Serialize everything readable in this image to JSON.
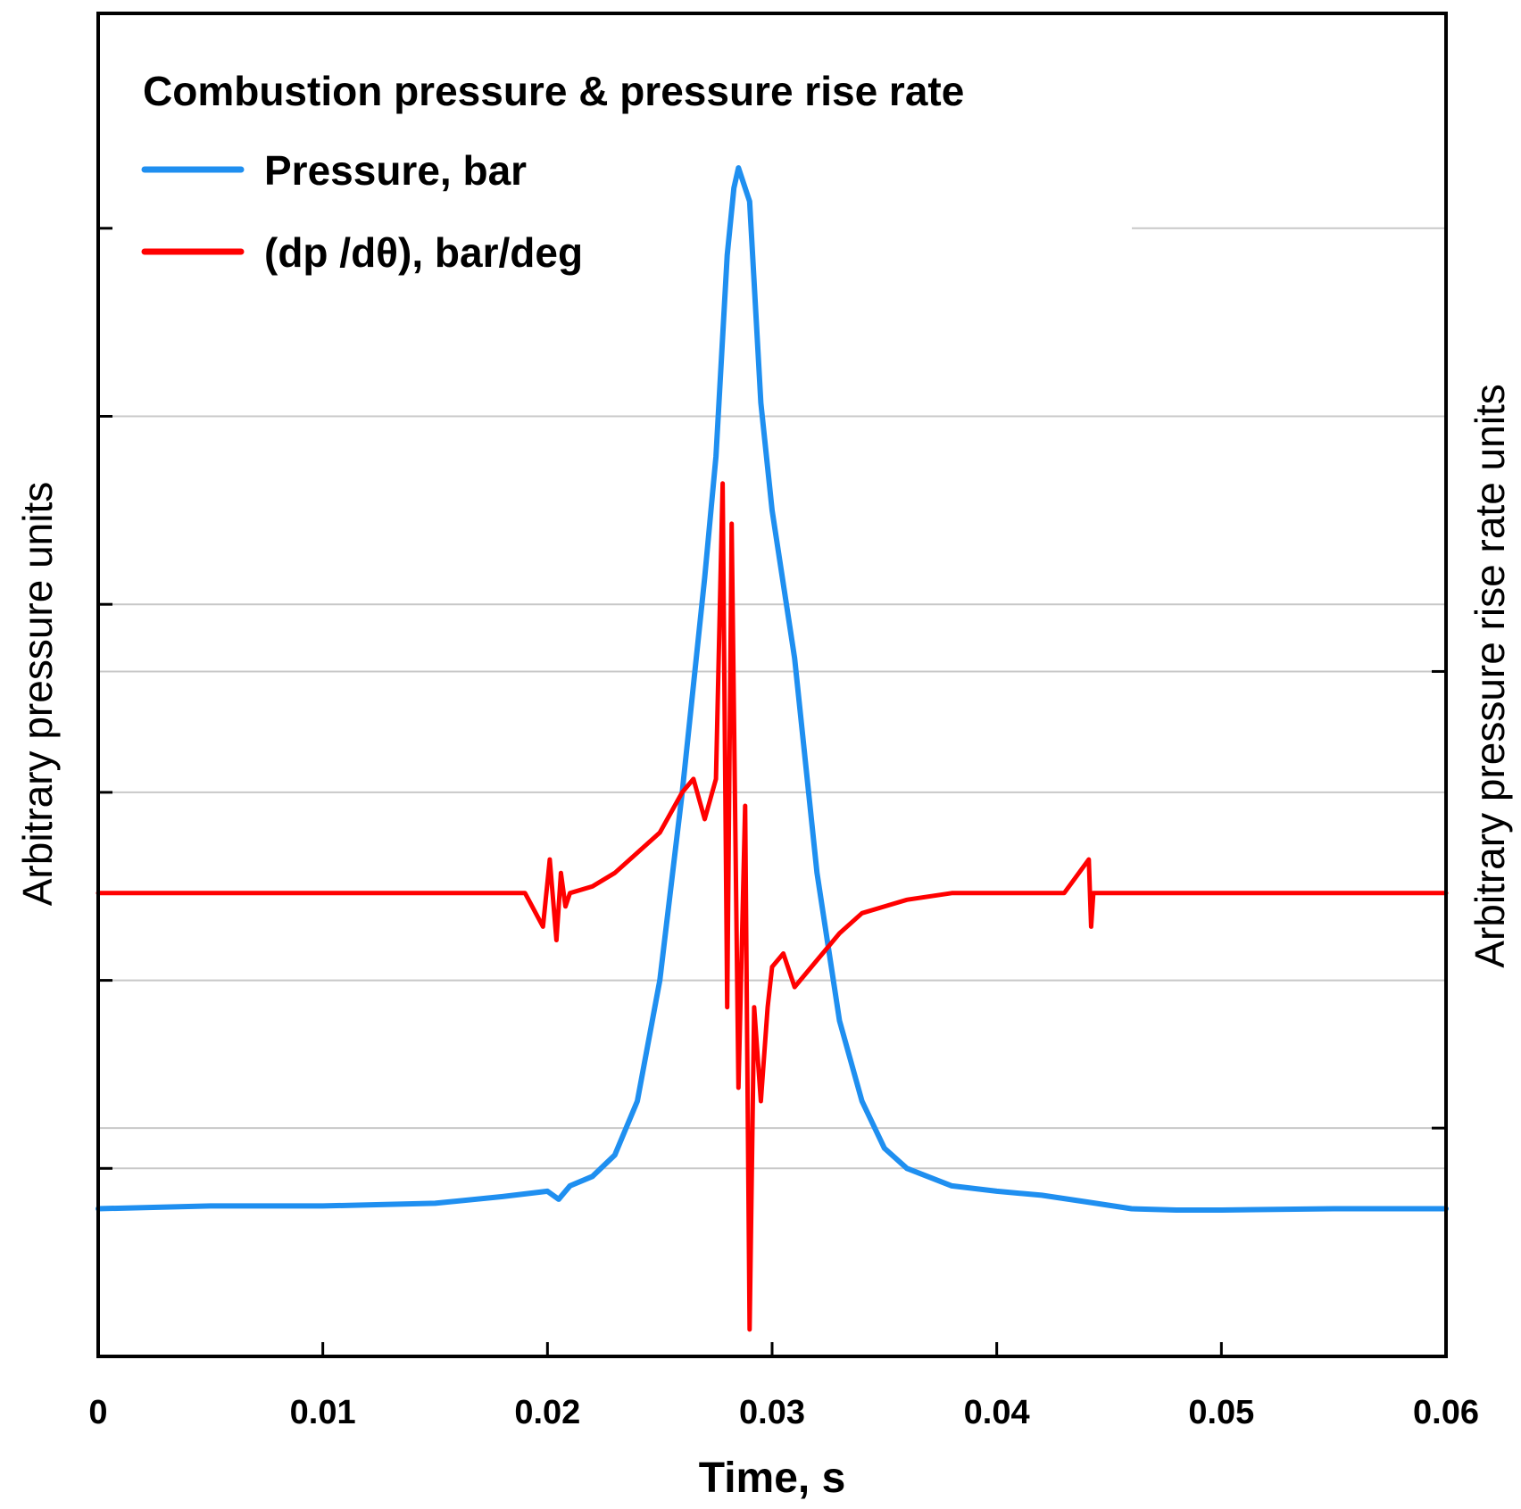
{
  "chart_data": {
    "type": "line",
    "title": "",
    "legend": {
      "title": "Combustion pressure & pressure rise rate",
      "placement": "top-left"
    },
    "xlabel": "Time, s",
    "ylabel_left": "Arbitrary pressure units",
    "ylabel_right": "Arbitrary pressure rise rate units",
    "xlim": [
      0,
      0.06
    ],
    "ylim": [
      0,
      100
    ],
    "x_ticks": [
      0,
      0.01,
      0.02,
      0.03,
      0.04,
      0.05,
      0.06
    ],
    "x_tick_labels": [
      "0",
      "0.01",
      "0.02",
      "0.03",
      "0.04",
      "0.05",
      "0.06"
    ],
    "y_left_ticks": [
      14,
      28,
      42,
      56,
      70,
      84
    ],
    "y_right_ticks": [
      17,
      51
    ],
    "grid": true,
    "gridlines_y": [
      14,
      17,
      28,
      42,
      51,
      56,
      70,
      84
    ],
    "series": [
      {
        "name": "Pressure, bar",
        "color": "#1f8ff0",
        "x": [
          0,
          0.005,
          0.01,
          0.015,
          0.018,
          0.02,
          0.0205,
          0.021,
          0.022,
          0.023,
          0.024,
          0.025,
          0.026,
          0.027,
          0.0275,
          0.028,
          0.0283,
          0.0285,
          0.0288,
          0.029,
          0.0295,
          0.03,
          0.031,
          0.032,
          0.033,
          0.034,
          0.035,
          0.036,
          0.038,
          0.04,
          0.042,
          0.044,
          0.046,
          0.048,
          0.05,
          0.055,
          0.06
        ],
        "values": [
          11,
          11.2,
          11.2,
          11.4,
          11.9,
          12.3,
          11.7,
          12.7,
          13.4,
          15,
          19,
          28,
          42,
          58,
          67,
          82,
          87,
          88.5,
          87,
          86,
          71,
          63,
          52,
          36,
          25,
          19,
          15.5,
          14,
          12.7,
          12.3,
          12,
          11.5,
          11,
          10.9,
          10.9,
          11,
          11
        ]
      },
      {
        "name": "(dp /dθ), bar/deg",
        "color": "#ff0000",
        "x": [
          0,
          0.005,
          0.01,
          0.015,
          0.019,
          0.0198,
          0.0201,
          0.0204,
          0.0206,
          0.0208,
          0.021,
          0.022,
          0.023,
          0.024,
          0.025,
          0.026,
          0.0265,
          0.027,
          0.0275,
          0.0278,
          0.028,
          0.0282,
          0.0285,
          0.0288,
          0.029,
          0.0292,
          0.0295,
          0.0298,
          0.03,
          0.0305,
          0.031,
          0.032,
          0.033,
          0.034,
          0.036,
          0.038,
          0.04,
          0.043,
          0.0441,
          0.0442,
          0.0443,
          0.0445,
          0.05,
          0.055,
          0.06
        ],
        "values": [
          34.5,
          34.5,
          34.5,
          34.5,
          34.5,
          32,
          37,
          31,
          36,
          33.5,
          34.5,
          35,
          36,
          37.5,
          39,
          42,
          43,
          40,
          43,
          65,
          26,
          62,
          20,
          41,
          2,
          26,
          19,
          26,
          29,
          30,
          27.5,
          29.5,
          31.5,
          33,
          34,
          34.5,
          34.5,
          34.5,
          37,
          32,
          34.5,
          34.5,
          34.5,
          34.5,
          34.5
        ]
      }
    ]
  }
}
